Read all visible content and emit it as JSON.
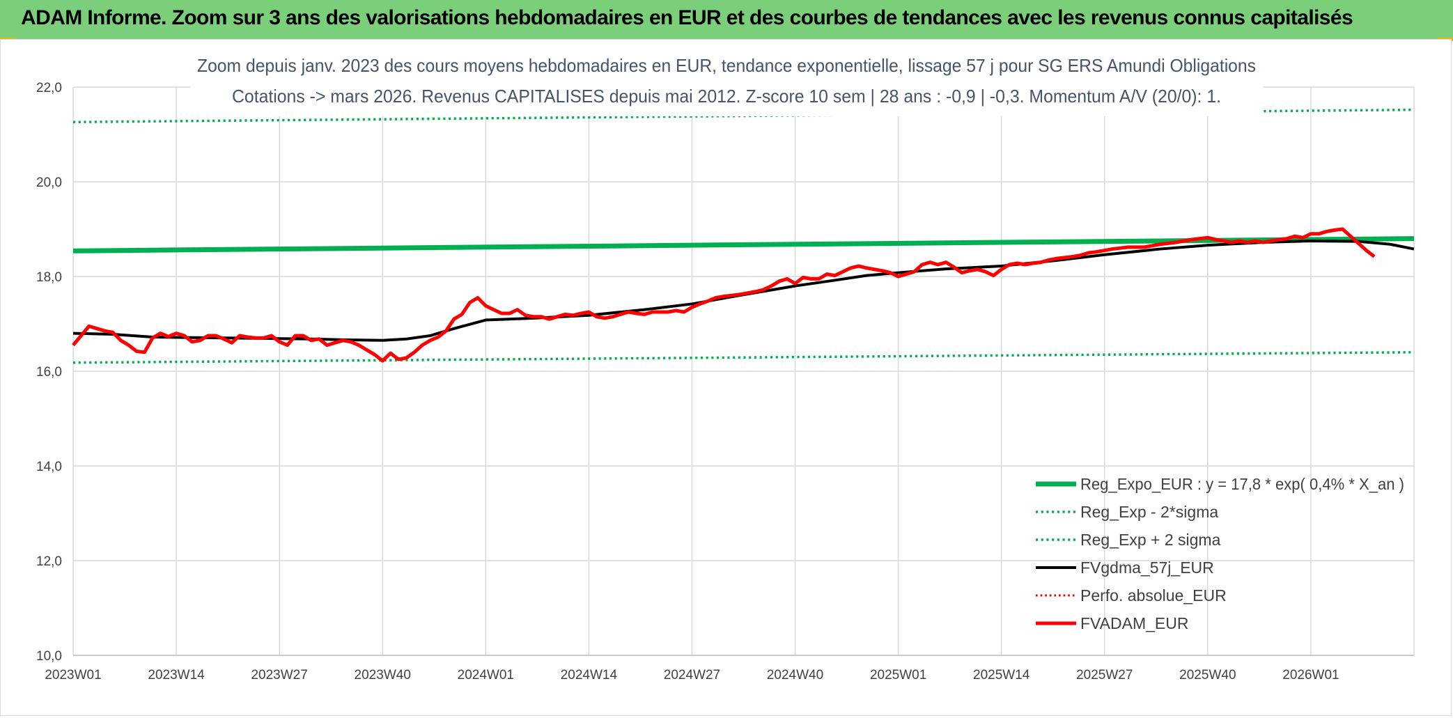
{
  "banner": {
    "title": "ADAM Informe. Zoom sur 3 ans des valorisations hebdomadaires en EUR et des courbes de tendances avec les revenus connus capitalisés"
  },
  "chart_data": {
    "type": "line",
    "title": "Zoom depuis janv. 2023 des cours moyens hebdomadaires en EUR, tendance exponentielle, lissage 57 j pour SG ERS Amundi Obligations",
    "subtitle": "Cotations -> mars 2026. Revenus CAPITALISES depuis mai 2012. Z-score 10 sem | 28 ans : -0,9 | -0,3. Momentum A/V (20/0): 1.",
    "ylim": [
      10,
      22
    ],
    "yticks": [
      "10,0",
      "12,0",
      "14,0",
      "16,0",
      "18,0",
      "20,0",
      "22,0"
    ],
    "xtick_labels": [
      "2023W01",
      "2023W14",
      "2023W27",
      "2023W40",
      "2024W01",
      "2024W14",
      "2024W27",
      "2024W40",
      "2025W01",
      "2025W14",
      "2025W27",
      "2025W40",
      "2026W01"
    ],
    "xtick_index": [
      0,
      13,
      26,
      39,
      52,
      65,
      78,
      91,
      104,
      117,
      130,
      143,
      156
    ],
    "n_weeks": 170,
    "grid": true,
    "legend_position": "bottom-right",
    "series": [
      {
        "name": "Reg_Expo_EUR : y = 17,8 * exp( 0,4% *  X_an )",
        "color": "#00b050",
        "style": "solid",
        "width": 7,
        "points": [
          [
            0,
            18.54
          ],
          [
            169,
            18.8
          ]
        ]
      },
      {
        "name": "Reg_Exp - 2*sigma",
        "color": "#00b050",
        "style": "dotted",
        "width": 3.5,
        "points": [
          [
            0,
            16.18
          ],
          [
            169,
            16.4
          ]
        ]
      },
      {
        "name": "Reg_Exp + 2 sigma",
        "color": "#00b050",
        "style": "dotted",
        "width": 3.5,
        "points": [
          [
            0,
            21.26
          ],
          [
            169,
            21.52
          ]
        ]
      },
      {
        "name": "FVgdma_57j_EUR",
        "color": "#000000",
        "style": "solid",
        "width": 4,
        "points": [
          [
            0,
            16.8
          ],
          [
            5,
            16.78
          ],
          [
            10,
            16.72
          ],
          [
            20,
            16.7
          ],
          [
            30,
            16.68
          ],
          [
            35,
            16.66
          ],
          [
            39,
            16.65
          ],
          [
            42,
            16.68
          ],
          [
            45,
            16.75
          ],
          [
            48,
            16.9
          ],
          [
            52,
            17.08
          ],
          [
            58,
            17.12
          ],
          [
            65,
            17.18
          ],
          [
            72,
            17.3
          ],
          [
            78,
            17.42
          ],
          [
            84,
            17.6
          ],
          [
            91,
            17.8
          ],
          [
            96,
            17.92
          ],
          [
            100,
            18.02
          ],
          [
            104,
            18.08
          ],
          [
            110,
            18.16
          ],
          [
            117,
            18.22
          ],
          [
            124,
            18.34
          ],
          [
            130,
            18.46
          ],
          [
            137,
            18.58
          ],
          [
            143,
            18.66
          ],
          [
            150,
            18.72
          ],
          [
            156,
            18.75
          ],
          [
            162,
            18.74
          ],
          [
            166,
            18.68
          ],
          [
            169,
            18.58
          ]
        ]
      }
    ],
    "absolute_perf": {
      "name": "Perfo. absolue_EUR",
      "color": "#ff0000",
      "style": "dotted",
      "width": 3
    },
    "fvadam": {
      "name": "FVADAM_EUR",
      "color": "#ff0000",
      "style": "solid",
      "width": 5,
      "values": [
        16.55,
        16.75,
        16.95,
        16.9,
        16.85,
        16.82,
        16.65,
        16.55,
        16.42,
        16.4,
        16.7,
        16.8,
        16.73,
        16.8,
        16.75,
        16.62,
        16.65,
        16.75,
        16.75,
        16.68,
        16.6,
        16.75,
        16.72,
        16.7,
        16.7,
        16.75,
        16.62,
        16.55,
        16.75,
        16.75,
        16.65,
        16.68,
        16.55,
        16.6,
        16.65,
        16.62,
        16.55,
        16.45,
        16.35,
        16.22,
        16.38,
        16.25,
        16.28,
        16.4,
        16.55,
        16.65,
        16.72,
        16.85,
        17.1,
        17.2,
        17.45,
        17.55,
        17.38,
        17.3,
        17.22,
        17.22,
        17.3,
        17.18,
        17.15,
        17.15,
        17.1,
        17.15,
        17.2,
        17.18,
        17.22,
        17.25,
        17.15,
        17.12,
        17.15,
        17.2,
        17.25,
        17.22,
        17.2,
        17.25,
        17.25,
        17.25,
        17.28,
        17.25,
        17.35,
        17.42,
        17.48,
        17.55,
        17.58,
        17.6,
        17.62,
        17.65,
        17.68,
        17.72,
        17.8,
        17.9,
        17.95,
        17.85,
        17.98,
        17.95,
        17.95,
        18.05,
        18.02,
        18.1,
        18.18,
        18.22,
        18.18,
        18.15,
        18.12,
        18.08,
        18.0,
        18.05,
        18.1,
        18.25,
        18.3,
        18.25,
        18.3,
        18.2,
        18.08,
        18.12,
        18.15,
        18.1,
        18.02,
        18.15,
        18.25,
        18.28,
        18.25,
        18.28,
        18.3,
        18.35,
        18.38,
        18.4,
        18.42,
        18.45,
        18.5,
        18.52,
        18.55,
        18.58,
        18.6,
        18.62,
        18.62,
        18.62,
        18.65,
        18.68,
        18.7,
        18.72,
        18.75,
        18.78,
        18.8,
        18.82,
        18.78,
        18.75,
        18.72,
        18.75,
        18.72,
        18.75,
        18.72,
        18.75,
        18.78,
        18.8,
        18.85,
        18.82,
        18.9,
        18.9,
        18.95,
        18.98,
        19.0,
        18.85,
        18.7,
        18.55,
        18.42
      ]
    }
  }
}
